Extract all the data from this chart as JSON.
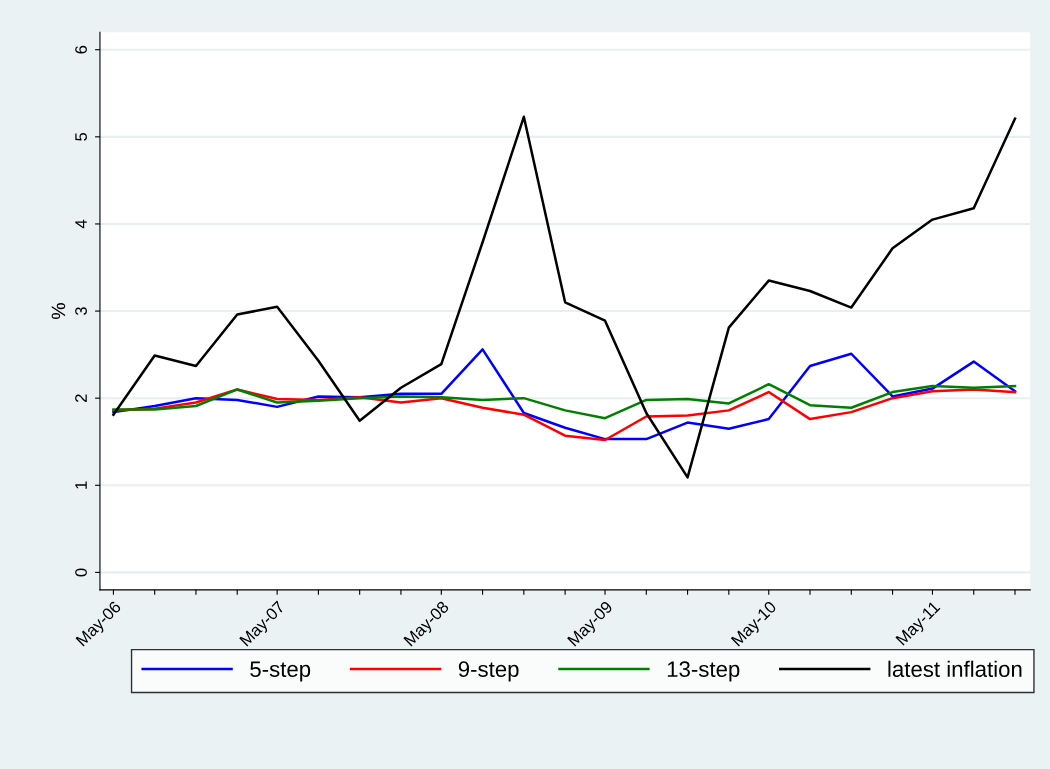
{
  "chart_data": {
    "type": "line",
    "ylabel": "%",
    "x": [
      "2006-05",
      "2006-08",
      "2006-11",
      "2007-02",
      "2007-05",
      "2007-08",
      "2007-11",
      "2008-02",
      "2008-05",
      "2008-08",
      "2008-11",
      "2009-02",
      "2009-05",
      "2009-08",
      "2009-11",
      "2010-02",
      "2010-05",
      "2010-08",
      "2010-11",
      "2011-02",
      "2011-05",
      "2011-08",
      "2011-11"
    ],
    "series": [
      {
        "name": "5-step",
        "color": "#0000ff",
        "values": [
          1.84,
          1.91,
          2.0,
          1.98,
          1.9,
          2.02,
          2.01,
          2.05,
          2.05,
          2.56,
          1.83,
          1.66,
          1.53,
          1.53,
          1.72,
          1.65,
          1.76,
          2.37,
          2.51,
          2.02,
          2.11,
          2.42,
          2.08
        ]
      },
      {
        "name": "9-step",
        "color": "#ff0000",
        "values": [
          1.86,
          1.88,
          1.95,
          2.1,
          1.99,
          1.98,
          2.01,
          1.95,
          2.0,
          1.89,
          1.81,
          1.57,
          1.52,
          1.79,
          1.8,
          1.86,
          2.07,
          1.76,
          1.84,
          2.0,
          2.08,
          2.1,
          2.07
        ]
      },
      {
        "name": "13-step",
        "color": "#008000",
        "values": [
          1.87,
          1.87,
          1.91,
          2.1,
          1.95,
          1.97,
          2.0,
          2.02,
          2.01,
          1.98,
          2.0,
          1.86,
          1.77,
          1.98,
          1.99,
          1.94,
          2.16,
          1.92,
          1.89,
          2.07,
          2.14,
          2.12,
          2.14
        ]
      },
      {
        "name": "latest inflation",
        "color": "#000000",
        "values": [
          1.81,
          2.49,
          2.37,
          2.96,
          3.05,
          2.43,
          1.74,
          2.12,
          2.39,
          3.79,
          5.23,
          3.1,
          2.89,
          1.83,
          1.09,
          2.81,
          3.35,
          3.23,
          3.04,
          3.72,
          4.05,
          4.18,
          5.21
        ]
      }
    ],
    "xlim": [
      "2006-04-01",
      "2011-12-05"
    ],
    "xticks": [
      {
        "value": "2006-05",
        "label": "May-06"
      },
      {
        "value": "2006-08",
        "label": null
      },
      {
        "value": "2006-11",
        "label": null
      },
      {
        "value": "2007-02",
        "label": null
      },
      {
        "value": "2007-05",
        "label": "May-07"
      },
      {
        "value": "2007-08",
        "label": null
      },
      {
        "value": "2007-11",
        "label": null
      },
      {
        "value": "2008-02",
        "label": null
      },
      {
        "value": "2008-05",
        "label": "May-08"
      },
      {
        "value": "2008-08",
        "label": null
      },
      {
        "value": "2008-11",
        "label": null
      },
      {
        "value": "2009-02",
        "label": null
      },
      {
        "value": "2009-05",
        "label": "May-09"
      },
      {
        "value": "2009-08",
        "label": null
      },
      {
        "value": "2009-11",
        "label": null
      },
      {
        "value": "2010-02",
        "label": null
      },
      {
        "value": "2010-05",
        "label": "May-10"
      },
      {
        "value": "2010-08",
        "label": null
      },
      {
        "value": "2010-11",
        "label": null
      },
      {
        "value": "2011-02",
        "label": null
      },
      {
        "value": "2011-05",
        "label": "May-11"
      },
      {
        "value": "2011-08",
        "label": null
      },
      {
        "value": "2011-11",
        "label": null
      }
    ],
    "ylim": [
      -0.2,
      6.2
    ],
    "yticks": [
      0,
      1,
      2,
      3,
      4,
      5,
      6
    ],
    "grid": "y",
    "legend": "bottom",
    "marker": "none",
    "line_style": "solid"
  }
}
